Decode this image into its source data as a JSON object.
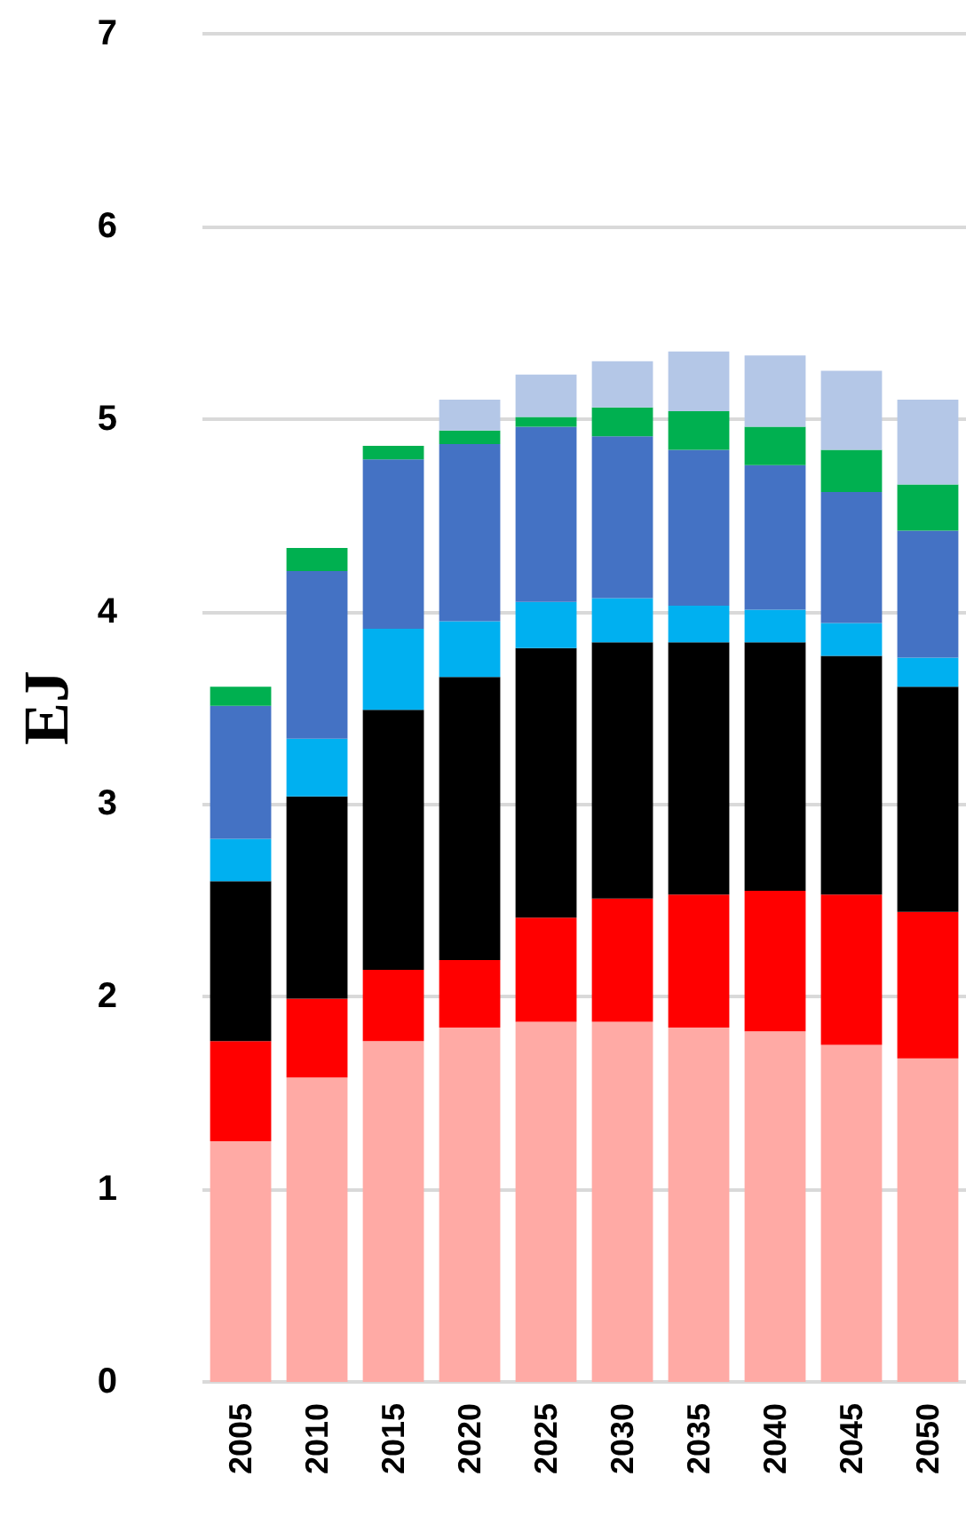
{
  "chart_data": {
    "type": "bar",
    "stacked": true,
    "ylabel": "EJ",
    "categories": [
      "2005",
      "2010",
      "2015",
      "2020",
      "2025",
      "2030",
      "2035",
      "2040",
      "2045",
      "2050"
    ],
    "ylim": [
      0,
      7
    ],
    "yticks": [
      0,
      1,
      2,
      3,
      4,
      5,
      6,
      7
    ],
    "grid": "y",
    "series": [
      {
        "color": "#ffaaa5",
        "values": [
          1.25,
          1.58,
          1.77,
          1.84,
          1.87,
          1.87,
          1.84,
          1.82,
          1.75,
          1.68
        ]
      },
      {
        "color": "#ff0000",
        "values": [
          0.52,
          0.41,
          0.37,
          0.35,
          0.54,
          0.64,
          0.69,
          0.73,
          0.78,
          0.76
        ]
      },
      {
        "color": "#000000",
        "values": [
          0.83,
          1.05,
          1.35,
          1.47,
          1.4,
          1.33,
          1.31,
          1.29,
          1.24,
          1.17
        ]
      },
      {
        "color": "#00b0f0",
        "values": [
          0.22,
          0.3,
          0.42,
          0.29,
          0.24,
          0.23,
          0.19,
          0.17,
          0.17,
          0.15
        ]
      },
      {
        "color": "#4472c4",
        "values": [
          0.69,
          0.87,
          0.88,
          0.92,
          0.91,
          0.84,
          0.81,
          0.75,
          0.68,
          0.66
        ]
      },
      {
        "color": "#00b050",
        "values": [
          0.1,
          0.12,
          0.07,
          0.07,
          0.05,
          0.15,
          0.2,
          0.2,
          0.22,
          0.24
        ]
      },
      {
        "color": "#b4c7e7",
        "values": [
          null,
          null,
          null,
          0.16,
          0.22,
          0.24,
          0.31,
          0.37,
          0.41,
          0.44
        ]
      }
    ]
  }
}
